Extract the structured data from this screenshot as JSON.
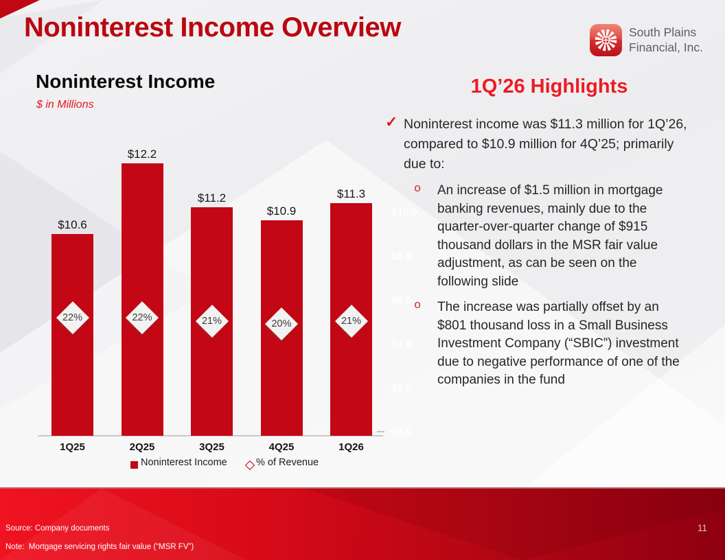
{
  "slide": {
    "title": "Noninterest Income Overview"
  },
  "logo": {
    "line1": "South Plains",
    "line2": "Financial, Inc."
  },
  "icons": {
    "check_bullet": "✓",
    "sub_bullet": "o"
  },
  "chart": {
    "title": "Noninterest Income",
    "subtitle": "$ in Millions",
    "legend": [
      {
        "label": "Noninterest Income",
        "marker": "filled-square",
        "color": "#c40714"
      },
      {
        "label": "% of Revenue",
        "marker": "hollow-diamond",
        "color": "#c40714"
      }
    ]
  },
  "chart_data": {
    "type": "bar",
    "title": "Noninterest Income",
    "ylabel": "$ in Millions",
    "categories": [
      "1Q25",
      "2Q25",
      "3Q25",
      "4Q25",
      "1Q26"
    ],
    "series": [
      {
        "name": "Noninterest Income",
        "type": "bar",
        "values": [
          10.6,
          12.2,
          11.2,
          10.9,
          11.3
        ],
        "labels": [
          "$10.6",
          "$12.2",
          "$11.2",
          "$10.9",
          "$11.3"
        ]
      },
      {
        "name": "% of Revenue",
        "type": "diamond-marker",
        "values": [
          22,
          22,
          21,
          20,
          21
        ],
        "labels": [
          "22%",
          "22%",
          "21%",
          "20%",
          "21%"
        ]
      }
    ],
    "axis_remnant_labels": [
      "$10.0",
      "$8.0",
      "$6.0",
      "$4.0",
      "$2.0",
      "$0.0"
    ],
    "legend_position": "bottom",
    "gridlines": false
  },
  "highlights": {
    "heading": "1Q’26 Highlights",
    "bullet_lines": [
      "Noninterest income was $11.3 million for 1Q’26,",
      "compared to $10.9 million for 4Q’25; primarily",
      "due to:"
    ],
    "sub_bullets": [
      {
        "lines": [
          "An increase of $1.5 million in mortgage",
          "banking revenues, mainly due to the",
          "quarter-over-quarter change of $915",
          "thousand dollars in the MSR fair value",
          "adjustment, as can be seen on the",
          "following slide"
        ]
      },
      {
        "lines": [
          "The increase was partially offset by an",
          "$801 thousand loss in a Small Business",
          "Investment Company (“SBIC”) investment",
          "due to negative performance of one of the",
          "companies in the fund"
        ]
      }
    ]
  },
  "footer": {
    "source": "Source: Company documents",
    "note": "Note:  Mortgage servicing rights fair value (“MSR FV”)",
    "page_number": "11"
  },
  "colors": {
    "title_red": "#bb070f",
    "accent_red": "#ec1b23",
    "bar_red": "#c40714",
    "footer_start": "#f01321",
    "footer_end": "#8e0010"
  }
}
